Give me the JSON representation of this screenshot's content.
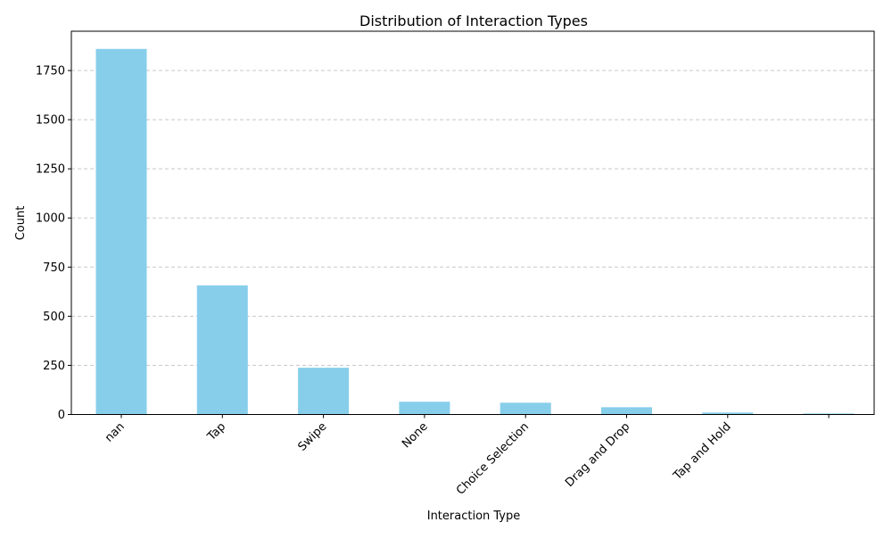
{
  "chart_data": {
    "type": "bar",
    "title": "Distribution of Interaction Types",
    "xlabel": "Interaction Type",
    "ylabel": "Count",
    "categories": [
      "nan",
      "Tap",
      "Swipe",
      "None",
      "Choice Selection",
      "Drag and Drop",
      "Tap and Hold",
      ""
    ],
    "values": [
      1860,
      657,
      238,
      65,
      60,
      37,
      10,
      5
    ],
    "ylim": [
      0,
      1950
    ],
    "yticks": [
      0,
      250,
      500,
      750,
      1000,
      1250,
      1500,
      1750
    ],
    "ytick_labels": [
      "0",
      "250",
      "500",
      "750",
      "1000",
      "1250",
      "1500",
      "1750"
    ],
    "grid": "y-dashed",
    "legend": "none",
    "colors": {
      "bar": "#87ceeb",
      "grid": "#c8c8c8",
      "axis": "#000000"
    }
  }
}
